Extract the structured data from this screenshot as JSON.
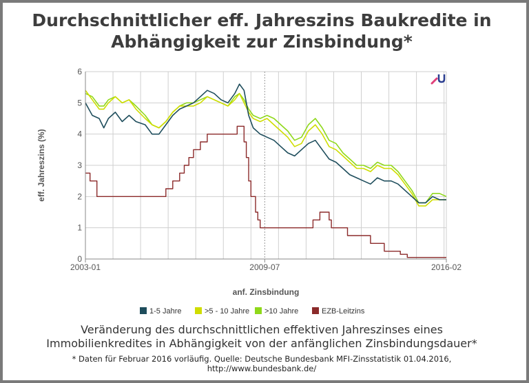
{
  "header": {
    "title_line1": "Durchschnittlicher eff. Jahreszins Baukredite in",
    "title_line2": "Abhängigkeit zur Zinsbindung*"
  },
  "caption": {
    "line1": "Veränderung des durchschnittlichen effektiven Jahreszinses eines",
    "line2": "Immobilienkredites in Abhängigkeit von der anfänglichen Zinsbindungsdauer*"
  },
  "footnote": {
    "line1": "* Daten für Februar 2016 vorläufig. Quelle: Deutsche Bundesbank MFI-Zinsstatistik 01.04.2016,",
    "line2": "http://www.bundesbank.de/"
  },
  "colors": {
    "s1": "#1e4d5c",
    "s2": "#cfdd00",
    "s3": "#8fd81a",
    "s4": "#8b2a2a",
    "grid": "#cfcfcf",
    "axis_text": "#555555"
  },
  "chart_data": {
    "type": "line",
    "title": "Durchschnittlicher eff. Jahreszins Baukredite in Abhängigkeit zur Zinsbindung*",
    "xlabel": "anf. Zinsbindung",
    "ylabel": "eff. Jahreszins (%)",
    "xlim": [
      "2003-01",
      "2016-02"
    ],
    "ylim": [
      0,
      6
    ],
    "x_ticks": [
      "2003-01",
      "2009-07",
      "2016-02"
    ],
    "y_ticks": [
      "0",
      "1",
      "2",
      "3",
      "4",
      "5",
      "6"
    ],
    "grid": true,
    "legend_position": "bottom",
    "series": [
      {
        "name": "1-5 Jahre",
        "points": [
          [
            "2003-01",
            5.0
          ],
          [
            "2003-04",
            4.6
          ],
          [
            "2003-07",
            4.5
          ],
          [
            "2003-09",
            4.2
          ],
          [
            "2003-11",
            4.5
          ],
          [
            "2004-02",
            4.7
          ],
          [
            "2004-05",
            4.4
          ],
          [
            "2004-08",
            4.6
          ],
          [
            "2004-11",
            4.4
          ],
          [
            "2005-03",
            4.3
          ],
          [
            "2005-06",
            4.0
          ],
          [
            "2005-09",
            4.0
          ],
          [
            "2005-12",
            4.3
          ],
          [
            "2006-03",
            4.6
          ],
          [
            "2006-06",
            4.8
          ],
          [
            "2006-09",
            4.9
          ],
          [
            "2006-12",
            5.0
          ],
          [
            "2007-03",
            5.2
          ],
          [
            "2007-06",
            5.4
          ],
          [
            "2007-09",
            5.3
          ],
          [
            "2007-12",
            5.1
          ],
          [
            "2008-03",
            5.0
          ],
          [
            "2008-06",
            5.3
          ],
          [
            "2008-08",
            5.6
          ],
          [
            "2008-10",
            5.4
          ],
          [
            "2008-12",
            4.6
          ],
          [
            "2009-02",
            4.2
          ],
          [
            "2009-05",
            4.0
          ],
          [
            "2009-08",
            3.9
          ],
          [
            "2009-11",
            3.8
          ],
          [
            "2010-02",
            3.6
          ],
          [
            "2010-05",
            3.4
          ],
          [
            "2010-08",
            3.3
          ],
          [
            "2010-11",
            3.5
          ],
          [
            "2011-02",
            3.7
          ],
          [
            "2011-05",
            3.8
          ],
          [
            "2011-08",
            3.5
          ],
          [
            "2011-11",
            3.2
          ],
          [
            "2012-02",
            3.1
          ],
          [
            "2012-05",
            2.9
          ],
          [
            "2012-08",
            2.7
          ],
          [
            "2012-11",
            2.6
          ],
          [
            "2013-02",
            2.5
          ],
          [
            "2013-05",
            2.4
          ],
          [
            "2013-08",
            2.6
          ],
          [
            "2013-11",
            2.5
          ],
          [
            "2014-02",
            2.5
          ],
          [
            "2014-05",
            2.4
          ],
          [
            "2014-08",
            2.2
          ],
          [
            "2014-11",
            2.0
          ],
          [
            "2015-02",
            1.8
          ],
          [
            "2015-05",
            1.8
          ],
          [
            "2015-08",
            2.0
          ],
          [
            "2015-11",
            1.9
          ],
          [
            "2016-02",
            1.9
          ]
        ]
      },
      {
        "name": ">5 - 10 Jahre",
        "points": [
          [
            "2003-01",
            5.4
          ],
          [
            "2003-04",
            5.1
          ],
          [
            "2003-07",
            4.8
          ],
          [
            "2003-09",
            4.8
          ],
          [
            "2003-11",
            5.0
          ],
          [
            "2004-02",
            5.2
          ],
          [
            "2004-05",
            5.0
          ],
          [
            "2004-08",
            5.1
          ],
          [
            "2004-11",
            4.8
          ],
          [
            "2005-03",
            4.5
          ],
          [
            "2005-06",
            4.3
          ],
          [
            "2005-09",
            4.2
          ],
          [
            "2005-12",
            4.4
          ],
          [
            "2006-03",
            4.7
          ],
          [
            "2006-06",
            4.9
          ],
          [
            "2006-09",
            4.9
          ],
          [
            "2006-12",
            4.9
          ],
          [
            "2007-03",
            5.0
          ],
          [
            "2007-06",
            5.2
          ],
          [
            "2007-09",
            5.1
          ],
          [
            "2007-12",
            5.0
          ],
          [
            "2008-03",
            4.9
          ],
          [
            "2008-06",
            5.1
          ],
          [
            "2008-08",
            5.3
          ],
          [
            "2008-10",
            5.0
          ],
          [
            "2008-12",
            4.7
          ],
          [
            "2009-02",
            4.5
          ],
          [
            "2009-05",
            4.4
          ],
          [
            "2009-08",
            4.5
          ],
          [
            "2009-11",
            4.3
          ],
          [
            "2010-02",
            4.1
          ],
          [
            "2010-05",
            3.9
          ],
          [
            "2010-08",
            3.6
          ],
          [
            "2010-11",
            3.7
          ],
          [
            "2011-02",
            4.1
          ],
          [
            "2011-05",
            4.3
          ],
          [
            "2011-08",
            4.0
          ],
          [
            "2011-11",
            3.6
          ],
          [
            "2012-02",
            3.5
          ],
          [
            "2012-05",
            3.3
          ],
          [
            "2012-08",
            3.1
          ],
          [
            "2012-11",
            2.9
          ],
          [
            "2013-02",
            2.9
          ],
          [
            "2013-05",
            2.8
          ],
          [
            "2013-08",
            3.0
          ],
          [
            "2013-11",
            2.9
          ],
          [
            "2014-02",
            2.9
          ],
          [
            "2014-05",
            2.7
          ],
          [
            "2014-08",
            2.4
          ],
          [
            "2014-11",
            2.1
          ],
          [
            "2015-02",
            1.7
          ],
          [
            "2015-05",
            1.7
          ],
          [
            "2015-08",
            1.9
          ],
          [
            "2015-11",
            1.9
          ],
          [
            "2016-02",
            1.9
          ]
        ]
      },
      {
        "name": ">10 Jahre",
        "points": [
          [
            "2003-01",
            5.3
          ],
          [
            "2003-04",
            5.2
          ],
          [
            "2003-07",
            4.9
          ],
          [
            "2003-09",
            4.9
          ],
          [
            "2003-11",
            5.1
          ],
          [
            "2004-02",
            5.2
          ],
          [
            "2004-05",
            5.0
          ],
          [
            "2004-08",
            5.1
          ],
          [
            "2004-11",
            4.9
          ],
          [
            "2005-03",
            4.6
          ],
          [
            "2005-06",
            4.3
          ],
          [
            "2005-09",
            4.2
          ],
          [
            "2005-12",
            4.4
          ],
          [
            "2006-03",
            4.7
          ],
          [
            "2006-06",
            4.9
          ],
          [
            "2006-09",
            5.0
          ],
          [
            "2006-12",
            5.0
          ],
          [
            "2007-03",
            5.1
          ],
          [
            "2007-06",
            5.2
          ],
          [
            "2007-09",
            5.1
          ],
          [
            "2007-12",
            5.0
          ],
          [
            "2008-03",
            4.9
          ],
          [
            "2008-06",
            5.2
          ],
          [
            "2008-08",
            5.3
          ],
          [
            "2008-10",
            5.1
          ],
          [
            "2008-12",
            4.8
          ],
          [
            "2009-02",
            4.6
          ],
          [
            "2009-05",
            4.5
          ],
          [
            "2009-08",
            4.6
          ],
          [
            "2009-11",
            4.5
          ],
          [
            "2010-02",
            4.3
          ],
          [
            "2010-05",
            4.1
          ],
          [
            "2010-08",
            3.8
          ],
          [
            "2010-11",
            3.9
          ],
          [
            "2011-02",
            4.3
          ],
          [
            "2011-05",
            4.5
          ],
          [
            "2011-08",
            4.2
          ],
          [
            "2011-11",
            3.8
          ],
          [
            "2012-02",
            3.7
          ],
          [
            "2012-05",
            3.4
          ],
          [
            "2012-08",
            3.2
          ],
          [
            "2012-11",
            3.0
          ],
          [
            "2013-02",
            3.0
          ],
          [
            "2013-05",
            2.9
          ],
          [
            "2013-08",
            3.1
          ],
          [
            "2013-11",
            3.0
          ],
          [
            "2014-02",
            3.0
          ],
          [
            "2014-05",
            2.8
          ],
          [
            "2014-08",
            2.5
          ],
          [
            "2014-11",
            2.2
          ],
          [
            "2015-02",
            1.8
          ],
          [
            "2015-05",
            1.8
          ],
          [
            "2015-08",
            2.1
          ],
          [
            "2015-11",
            2.1
          ],
          [
            "2016-02",
            2.0
          ]
        ]
      },
      {
        "name": "EZB-Leitzins",
        "step": true,
        "points": [
          [
            "2003-01",
            2.75
          ],
          [
            "2003-03",
            2.5
          ],
          [
            "2003-06",
            2.0
          ],
          [
            "2005-12",
            2.25
          ],
          [
            "2006-03",
            2.5
          ],
          [
            "2006-06",
            2.75
          ],
          [
            "2006-08",
            3.0
          ],
          [
            "2006-10",
            3.25
          ],
          [
            "2006-12",
            3.5
          ],
          [
            "2007-03",
            3.75
          ],
          [
            "2007-06",
            4.0
          ],
          [
            "2008-07",
            4.25
          ],
          [
            "2008-10",
            3.75
          ],
          [
            "2008-11",
            3.25
          ],
          [
            "2008-12",
            2.5
          ],
          [
            "2009-01",
            2.0
          ],
          [
            "2009-03",
            1.5
          ],
          [
            "2009-04",
            1.25
          ],
          [
            "2009-05",
            1.0
          ],
          [
            "2011-04",
            1.25
          ],
          [
            "2011-07",
            1.5
          ],
          [
            "2011-11",
            1.25
          ],
          [
            "2011-12",
            1.0
          ],
          [
            "2012-07",
            0.75
          ],
          [
            "2013-05",
            0.5
          ],
          [
            "2013-11",
            0.25
          ],
          [
            "2014-06",
            0.15
          ],
          [
            "2014-09",
            0.05
          ],
          [
            "2016-02",
            0.05
          ]
        ]
      }
    ]
  }
}
